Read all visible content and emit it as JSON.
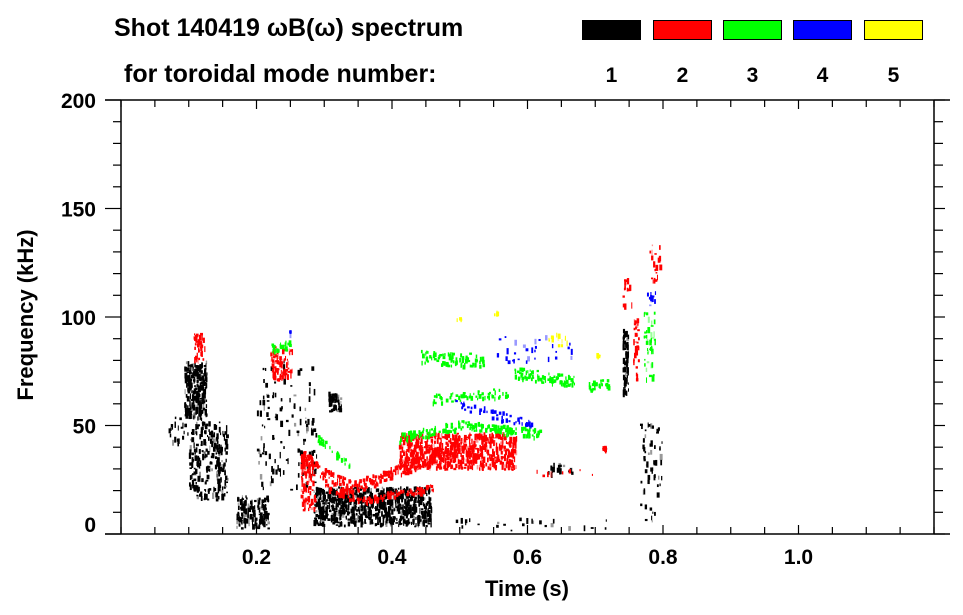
{
  "chart_data": {
    "type": "heatmap",
    "title_line1": "Shot 140419 ωB(ω) spectrum",
    "title_line2": "for toroidal mode number:",
    "xlabel": "Time (s)",
    "ylabel": "Frequency (kHz)",
    "xlim": [
      0,
      1.2
    ],
    "ylim": [
      0,
      200
    ],
    "x_major_ticks": [
      0.2,
      0.4,
      0.6,
      0.8,
      1.0
    ],
    "x_tick_labels": [
      "0.2",
      "0.4",
      "0.6",
      "0.8",
      "1.0"
    ],
    "x_minor_step": 0.05,
    "y_major_ticks": [
      0,
      50,
      100,
      150,
      200
    ],
    "y_tick_labels": [
      "0",
      "50",
      "100",
      "150",
      "200"
    ],
    "y_minor_step": 10,
    "legend_placement": "top-right",
    "legend": [
      {
        "mode": "1",
        "color": "#000000"
      },
      {
        "mode": "2",
        "color": "#ff0000"
      },
      {
        "mode": "3",
        "color": "#00ff00"
      },
      {
        "mode": "4",
        "color": "#0000ff"
      },
      {
        "mode": "5",
        "color": "#ffff00"
      }
    ],
    "series": [
      {
        "name": "1",
        "color": "#000000",
        "patches": [
          [
            0.093,
            0.128,
            52,
            80,
            0.8
          ],
          [
            0.07,
            0.1,
            40,
            55,
            0.15
          ],
          [
            0.1,
            0.16,
            15,
            52,
            0.35
          ],
          [
            0.17,
            0.22,
            2,
            18,
            0.6
          ],
          [
            0.306,
            0.327,
            56,
            66,
            0.8
          ],
          [
            0.284,
            0.46,
            3,
            22,
            0.75
          ],
          [
            0.63,
            0.67,
            25,
            33,
            0.2
          ],
          [
            0.74,
            0.75,
            63,
            95,
            0.8
          ],
          [
            0.766,
            0.8,
            5,
            52,
            0.12
          ],
          [
            0.48,
            0.72,
            1,
            8,
            0.05
          ],
          [
            0.2,
            0.29,
            20,
            80,
            0.08
          ]
        ],
        "tracks": []
      },
      {
        "name": "2",
        "color": "#ff0000",
        "patches": [
          [
            0.106,
            0.125,
            78,
            93,
            0.5
          ],
          [
            0.22,
            0.255,
            70,
            87,
            0.45
          ],
          [
            0.265,
            0.29,
            10,
            37,
            0.4
          ],
          [
            0.41,
            0.585,
            29,
            47,
            0.7
          ],
          [
            0.6,
            0.72,
            26,
            30,
            0.06
          ],
          [
            0.71,
            0.72,
            37,
            41,
            0.6
          ],
          [
            0.756,
            0.766,
            70,
            100,
            0.35
          ],
          [
            0.74,
            0.755,
            103,
            118,
            0.2
          ],
          [
            0.78,
            0.8,
            115,
            135,
            0.15
          ]
        ],
        "tracks": [
          {
            "points": [
              [
                0.265,
                37
              ],
              [
                0.3,
                27
              ],
              [
                0.343,
                21
              ],
              [
                0.4,
                28
              ],
              [
                0.45,
                35
              ],
              [
                0.5,
                39
              ]
            ],
            "width": 3,
            "density": 0.7
          },
          {
            "points": [
              [
                0.3,
                22
              ],
              [
                0.35,
                15
              ],
              [
                0.4,
                18
              ],
              [
                0.46,
                21
              ]
            ],
            "width": 1.5,
            "density": 0.4
          }
        ]
      },
      {
        "name": "3",
        "color": "#00ff00",
        "patches": [
          [
            0.77,
            0.79,
            67,
            103,
            0.2
          ]
        ],
        "tracks": [
          {
            "points": [
              [
                0.29,
                44
              ],
              [
                0.34,
                30
              ]
            ],
            "width": 1.5,
            "density": 0.4
          },
          {
            "points": [
              [
                0.41,
                44
              ],
              [
                0.5,
                50
              ],
              [
                0.62,
                46
              ]
            ],
            "width": 2,
            "density": 0.5
          },
          {
            "points": [
              [
                0.44,
                82
              ],
              [
                0.49,
                80
              ],
              [
                0.535,
                80
              ]
            ],
            "width": 3,
            "density": 0.5
          },
          {
            "points": [
              [
                0.46,
                62
              ],
              [
                0.57,
                65
              ]
            ],
            "width": 2,
            "density": 0.3
          },
          {
            "points": [
              [
                0.58,
                74
              ],
              [
                0.67,
                70
              ]
            ],
            "width": 2.5,
            "density": 0.6
          },
          {
            "points": [
              [
                0.69,
                68
              ],
              [
                0.72,
                69
              ]
            ],
            "width": 2,
            "density": 0.6
          },
          {
            "points": [
              [
                0.22,
                85
              ],
              [
                0.25,
                87
              ]
            ],
            "width": 2,
            "density": 0.5
          }
        ]
      },
      {
        "name": "4",
        "color": "#0000ff",
        "patches": [
          [
            0.55,
            0.67,
            78,
            92,
            0.06
          ],
          [
            0.776,
            0.79,
            103,
            112,
            0.3
          ],
          [
            0.248,
            0.252,
            90,
            94,
            0.6
          ]
        ],
        "tracks": [
          {
            "points": [
              [
                0.49,
                60
              ],
              [
                0.61,
                50
              ]
            ],
            "width": 2,
            "density": 0.25
          }
        ]
      },
      {
        "name": "5",
        "color": "#ffff00",
        "patches": [
          [
            0.495,
            0.505,
            97,
            100,
            0.5
          ],
          [
            0.55,
            0.56,
            100,
            103,
            0.5
          ],
          [
            0.63,
            0.66,
            86,
            93,
            0.25
          ],
          [
            0.7,
            0.71,
            81,
            83,
            0.6
          ]
        ],
        "tracks": []
      }
    ]
  }
}
